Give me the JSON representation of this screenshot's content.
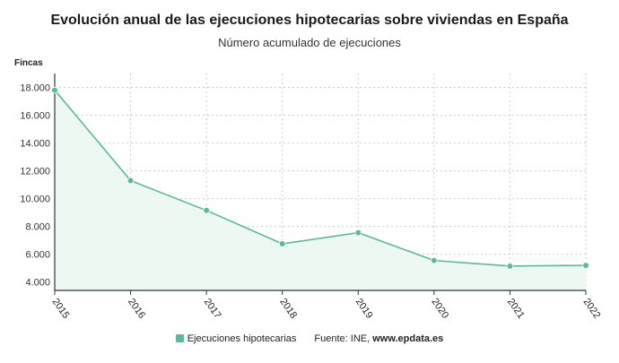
{
  "chart_data": {
    "type": "area",
    "title": "Evolución anual de las ejecuciones hipotecarias sobre viviendas en España",
    "subtitle": "Número acumulado de ejecuciones",
    "ylabel": "Fincas",
    "xlabel": "",
    "categories": [
      "2015",
      "2016",
      "2017",
      "2018",
      "2019",
      "2020",
      "2021",
      "2022"
    ],
    "series": [
      {
        "name": "Ejecuciones hipotecarias",
        "values": [
          17800,
          11300,
          9150,
          6750,
          7550,
          5550,
          5150,
          5200
        ]
      }
    ],
    "ylim": [
      3400,
      19000
    ],
    "yticks": [
      4000,
      6000,
      8000,
      10000,
      12000,
      14000,
      16000,
      18000
    ],
    "ytick_labels": [
      "4.000",
      "6.000",
      "8.000",
      "10.000",
      "12.000",
      "14.000",
      "16.000",
      "18.000"
    ],
    "grid": true,
    "legend_position": "bottom",
    "source_prefix": "Fuente: INE, ",
    "source_site": "www.epdata.es",
    "colors": {
      "line": "#5cb89a",
      "fill": "#eef8f3",
      "grid": "#cccccc"
    }
  }
}
